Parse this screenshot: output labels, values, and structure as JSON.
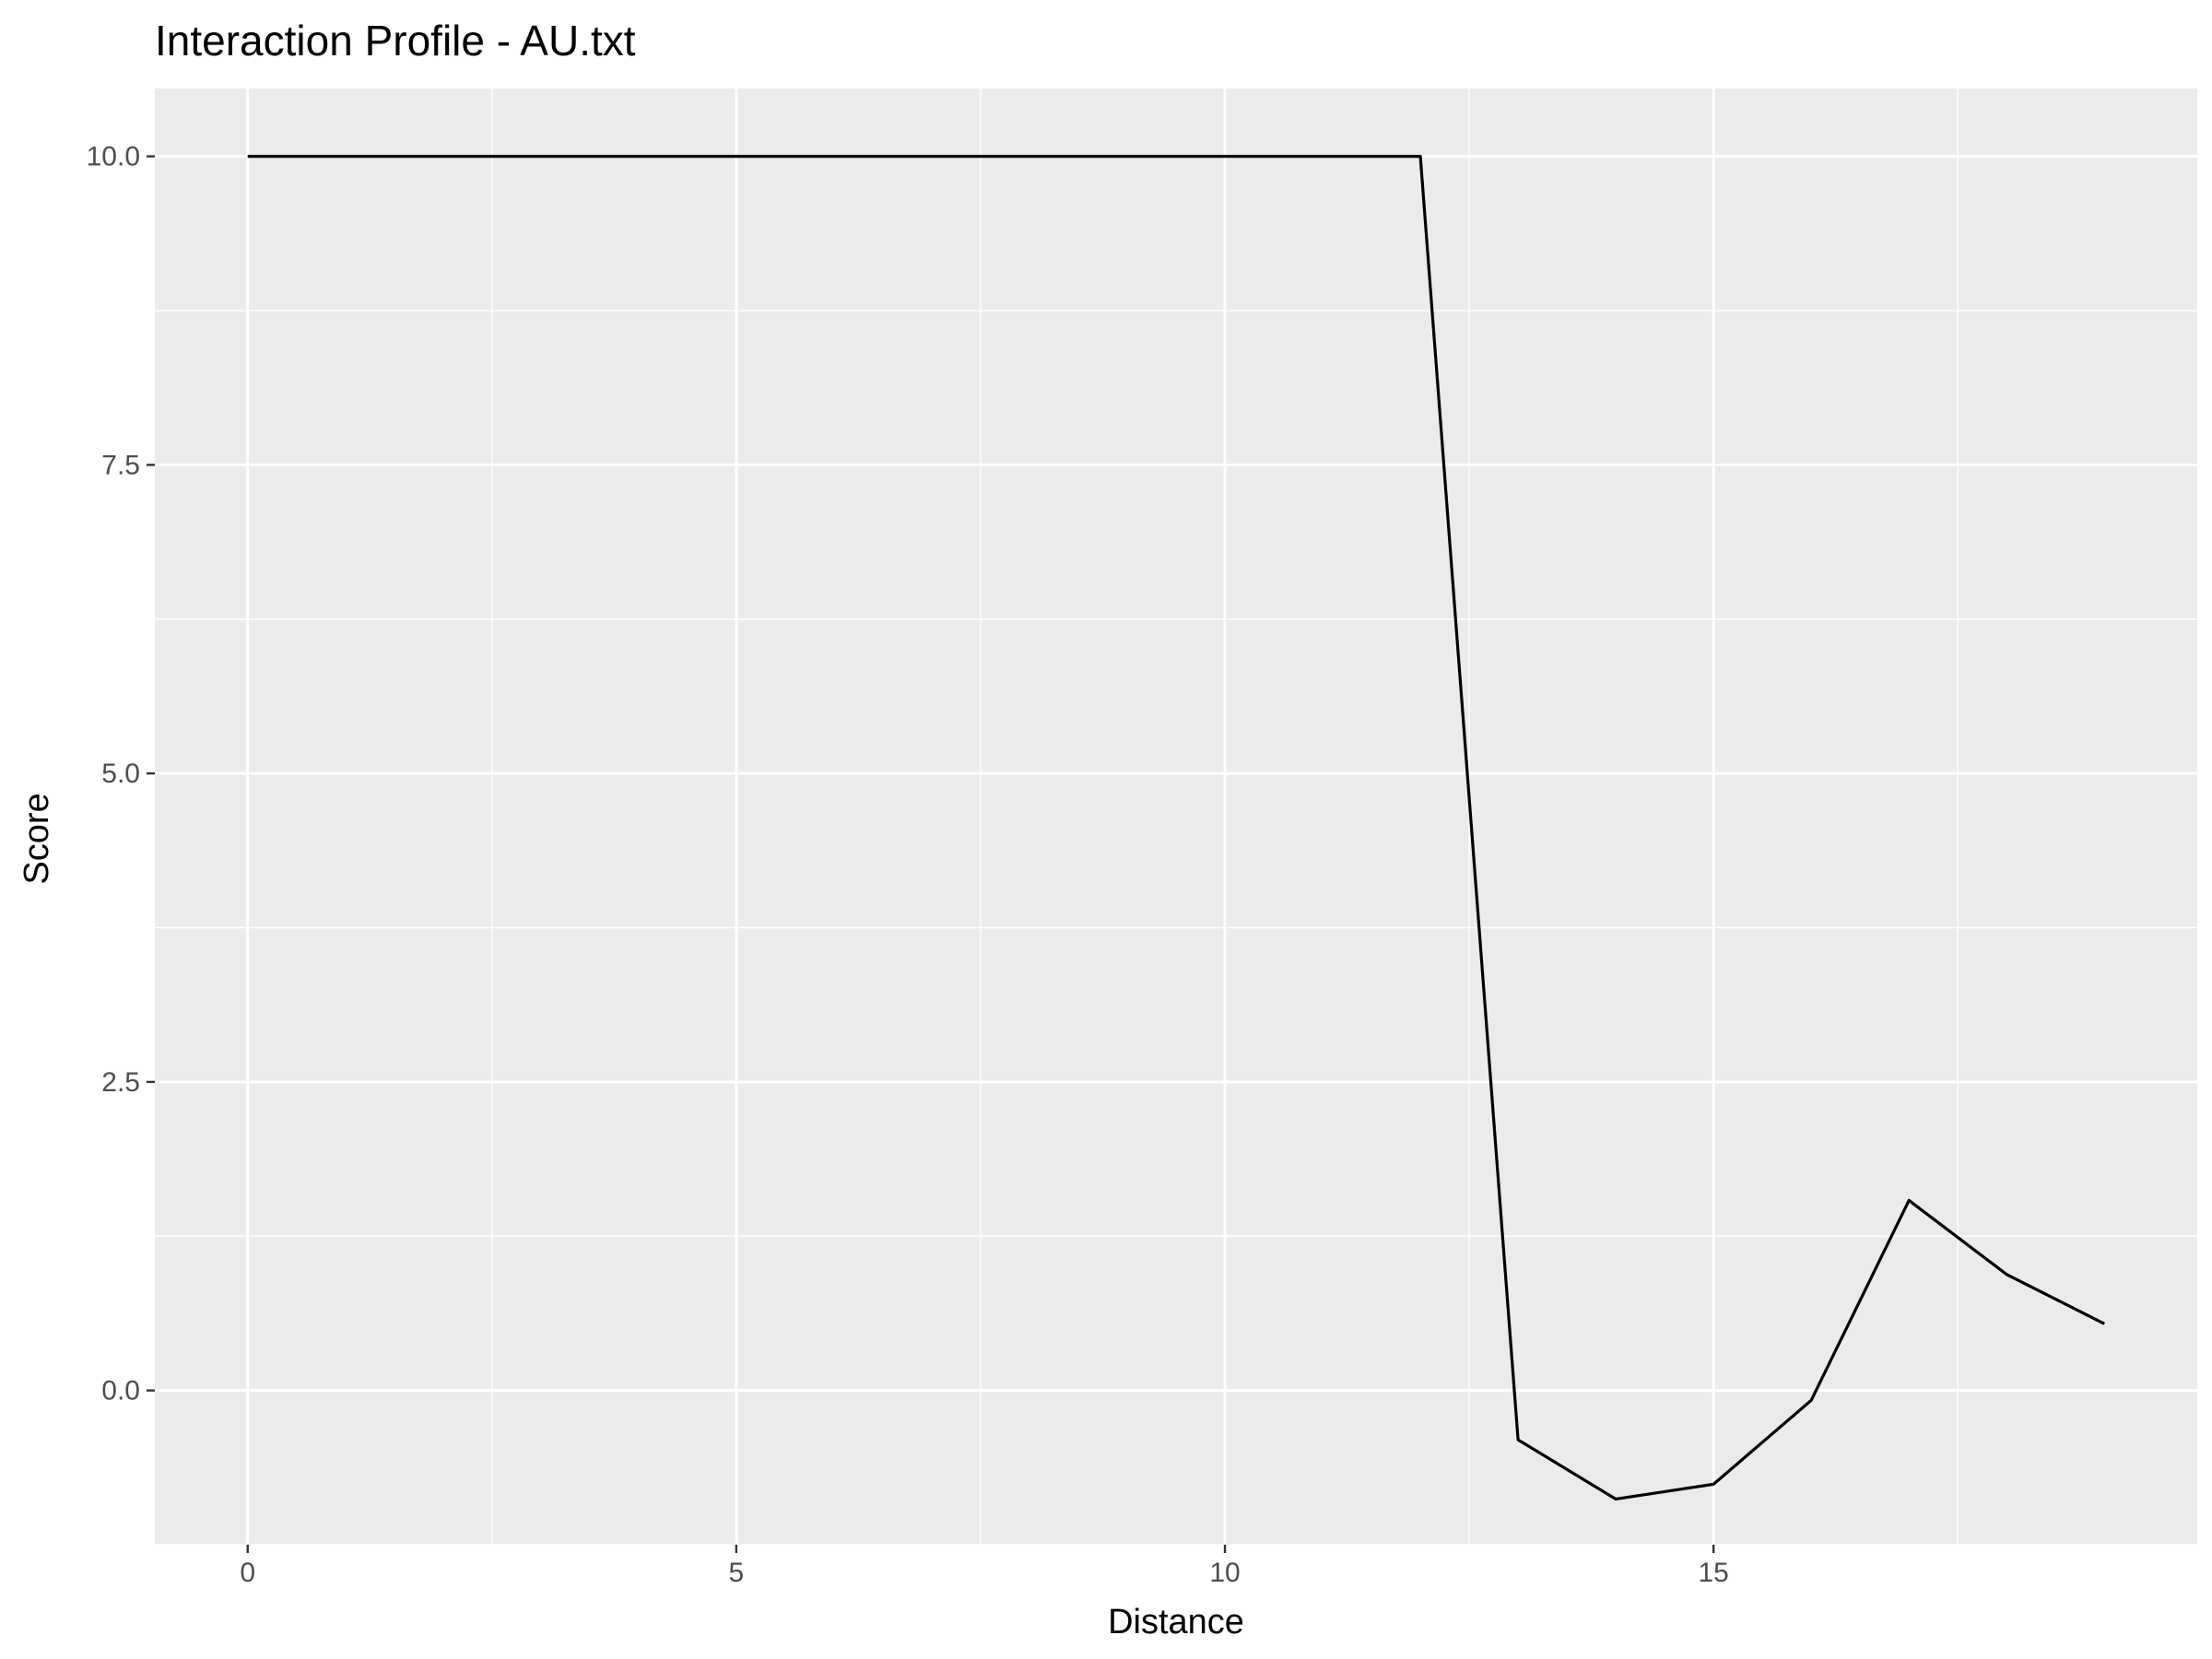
{
  "chart_data": {
    "type": "line",
    "title": "Interaction Profile - AU.txt",
    "xlabel": "Distance",
    "ylabel": "Score",
    "xlim": [
      -0.95,
      19.95
    ],
    "ylim": [
      -1.25,
      10.55
    ],
    "x_ticks": [
      0,
      5,
      10,
      15
    ],
    "x_tick_labels": [
      "0",
      "5",
      "10",
      "15"
    ],
    "x_minor_breaks": [
      2.5,
      7.5,
      12.5,
      17.5
    ],
    "y_ticks": [
      0,
      2.5,
      5,
      7.5,
      10
    ],
    "y_tick_labels": [
      "0.0",
      "2.5",
      "5.0",
      "7.5",
      "10.0"
    ],
    "y_minor_breaks": [
      -1.25,
      1.25,
      3.75,
      6.25,
      8.75
    ],
    "grid": true,
    "legend": "none",
    "series": [
      {
        "color": "#000000",
        "x": [
          0,
          1,
          2,
          3,
          4,
          5,
          6,
          7,
          8,
          9,
          10,
          11,
          12,
          13,
          14,
          15,
          16,
          17,
          18,
          19
        ],
        "y": [
          10,
          10,
          10,
          10,
          10,
          10,
          10,
          10,
          10,
          10,
          10,
          10,
          10,
          -0.4,
          -0.88,
          -0.76,
          -0.08,
          1.54,
          0.94,
          0.54
        ]
      }
    ],
    "colors": {
      "panel_background": "#ebebeb",
      "grid_major": "#ffffff",
      "grid_minor": "#ffffff",
      "tick_text": "#4d4d4d",
      "axis_ticks": "#333333",
      "line": "#000000"
    }
  }
}
